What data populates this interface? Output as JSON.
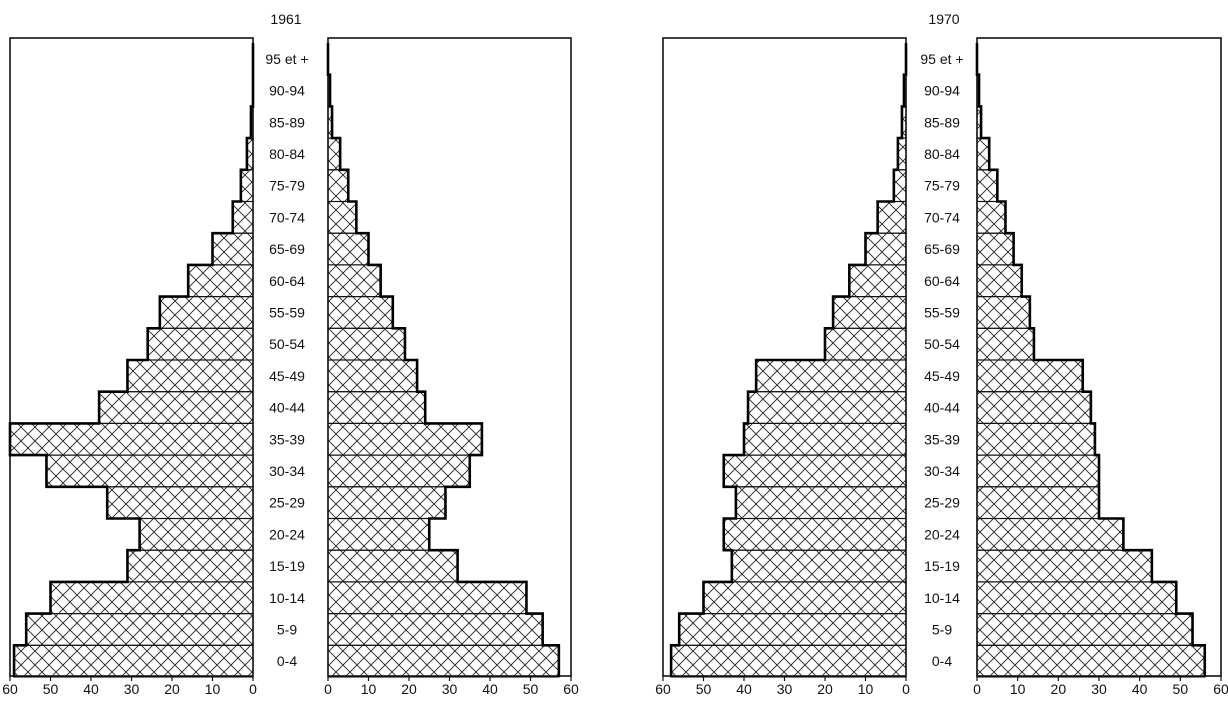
{
  "chart_data": [
    {
      "type": "bar",
      "orientation": "population-pyramid",
      "title": "1961",
      "categories": [
        "0-4",
        "5-9",
        "10-14",
        "15-19",
        "20-24",
        "25-29",
        "30-34",
        "35-39",
        "40-44",
        "45-49",
        "50-54",
        "55-59",
        "60-64",
        "65-69",
        "70-74",
        "75-79",
        "80-84",
        "85-89",
        "90-94",
        "95 et +"
      ],
      "series": [
        {
          "side": "left",
          "values": [
            59,
            56,
            50,
            31,
            28,
            36,
            51,
            60,
            38,
            31,
            26,
            23,
            16,
            10,
            5,
            3,
            1.5,
            0.5,
            0,
            0
          ]
        },
        {
          "side": "right",
          "values": [
            57,
            53,
            49,
            32,
            25,
            29,
            35,
            38,
            24,
            22,
            19,
            16,
            13,
            10,
            7,
            5,
            3,
            1,
            0.5,
            0
          ]
        }
      ],
      "xticks_left": [
        "60",
        "50",
        "40",
        "30",
        "20",
        "10",
        "0"
      ],
      "xticks_right": [
        "0",
        "10",
        "20",
        "30",
        "40",
        "50",
        "60"
      ],
      "xlim": [
        0,
        60
      ]
    },
    {
      "type": "bar",
      "orientation": "population-pyramid",
      "title": "1970",
      "categories": [
        "0-4",
        "5-9",
        "10-14",
        "15-19",
        "20-24",
        "25-29",
        "30-34",
        "35-39",
        "40-44",
        "45-49",
        "50-54",
        "55-59",
        "60-64",
        "65-69",
        "70-74",
        "75-79",
        "80-84",
        "85-89",
        "90-94",
        "95 et +"
      ],
      "series": [
        {
          "side": "left",
          "values": [
            58,
            56,
            50,
            43,
            45,
            42,
            45,
            40,
            39,
            37,
            20,
            18,
            14,
            10,
            7,
            3,
            2,
            1,
            0.5,
            0
          ]
        },
        {
          "side": "right",
          "values": [
            56,
            53,
            49,
            43,
            36,
            30,
            30,
            29,
            28,
            26,
            14,
            13,
            11,
            9,
            7,
            5,
            3,
            1,
            0.5,
            0
          ]
        }
      ],
      "xticks_left": [
        "60",
        "50",
        "40",
        "30",
        "20",
        "10",
        "0"
      ],
      "xticks_right": [
        "0",
        "10",
        "20",
        "30",
        "40",
        "50",
        "60"
      ],
      "xlim": [
        0,
        60
      ]
    }
  ]
}
